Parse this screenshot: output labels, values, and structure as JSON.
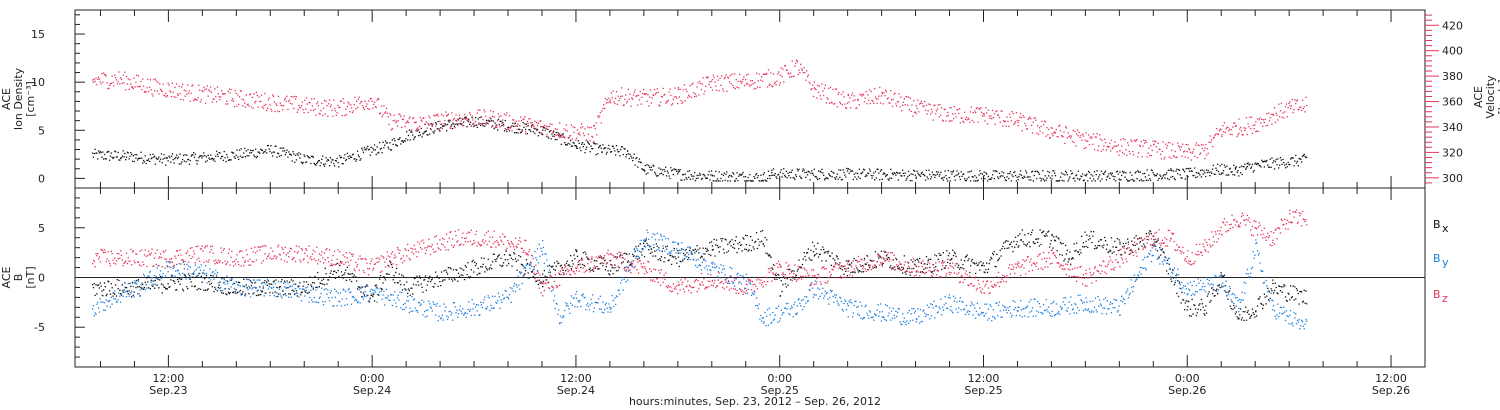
{
  "chart_data": [
    {
      "type": "scatter",
      "panel": "top",
      "ylabel_lines": [
        "ACE",
        "Ion Density",
        "[cm⁻³]"
      ],
      "ylabel_right_lines": [
        "ACE",
        "Velocity",
        "[km/s]"
      ],
      "ylim": [
        -1,
        17.5
      ],
      "yticks": [
        0,
        5,
        10,
        15
      ],
      "ylim_right": [
        292,
        432
      ],
      "yticks_right": [
        300,
        320,
        340,
        360,
        380,
        400,
        420
      ],
      "series": [
        {
          "axis": "left",
          "color": "#111111",
          "points": [
            [
              7.5,
              2.5
            ],
            [
              10,
              2.3
            ],
            [
              12,
              2.0
            ],
            [
              14,
              2.2
            ],
            [
              16,
              2.5
            ],
            [
              18,
              3.0
            ],
            [
              20,
              2.0
            ],
            [
              22,
              1.8
            ],
            [
              24,
              3.0
            ],
            [
              25,
              3.5
            ],
            [
              26,
              4.5
            ],
            [
              28,
              5.5
            ],
            [
              30,
              6.0
            ],
            [
              32,
              5.5
            ],
            [
              34,
              5.0
            ],
            [
              36,
              3.5
            ],
            [
              37.5,
              3.0
            ],
            [
              39,
              2.8
            ],
            [
              40,
              1.0
            ],
            [
              42,
              0.5
            ],
            [
              44,
              0.3
            ],
            [
              46,
              0.2
            ],
            [
              47,
              0.1
            ],
            [
              47.5,
              0.5
            ],
            [
              52,
              0.5
            ],
            [
              56,
              0.4
            ],
            [
              60,
              0.3
            ],
            [
              64,
              0.3
            ],
            [
              68,
              0.3
            ],
            [
              71,
              0.5
            ],
            [
              72,
              0.5
            ],
            [
              74,
              1.0
            ],
            [
              74.8,
              0.8
            ],
            [
              75.5,
              1.2
            ],
            [
              76.5,
              1.5
            ],
            [
              79,
              2.0
            ]
          ]
        },
        {
          "axis": "right",
          "color": "#e6335c",
          "points": [
            [
              7.5,
              377
            ],
            [
              9,
              378
            ],
            [
              11,
              372
            ],
            [
              13,
              368
            ],
            [
              16,
              363
            ],
            [
              18,
              360
            ],
            [
              20,
              357
            ],
            [
              22,
              355
            ],
            [
              24,
              362
            ],
            [
              25,
              345
            ],
            [
              27,
              343
            ],
            [
              29,
              347
            ],
            [
              31,
              347
            ],
            [
              33,
              342
            ],
            [
              35,
              338
            ],
            [
              37,
              335
            ],
            [
              38,
              365
            ],
            [
              40,
              363
            ],
            [
              42,
              365
            ],
            [
              44,
              375
            ],
            [
              46,
              376
            ],
            [
              48,
              380
            ],
            [
              49,
              388
            ],
            [
              50,
              370
            ],
            [
              52,
              360
            ],
            [
              54,
              365
            ],
            [
              56,
              355
            ],
            [
              58,
              350
            ],
            [
              60,
              350
            ],
            [
              62,
              345
            ],
            [
              64,
              337
            ],
            [
              66,
              330
            ],
            [
              68,
              325
            ],
            [
              70,
              323
            ],
            [
              72,
              320
            ],
            [
              73,
              322
            ],
            [
              74,
              338
            ],
            [
              75,
              340
            ],
            [
              76,
              343
            ],
            [
              77,
              350
            ],
            [
              78,
              355
            ],
            [
              79,
              357
            ]
          ]
        }
      ]
    },
    {
      "type": "scatter",
      "panel": "bottom",
      "ylabel_lines": [
        "ACE",
        "B",
        "[nT]"
      ],
      "ylim": [
        -9,
        9
      ],
      "yticks": [
        -5,
        0,
        5
      ],
      "series": [
        {
          "name": "Bx",
          "color": "#111111",
          "points": [
            [
              7.5,
              -1
            ],
            [
              10,
              -1
            ],
            [
              12,
              -0.5
            ],
            [
              14,
              -0.3
            ],
            [
              16,
              -1
            ],
            [
              18,
              -1
            ],
            [
              20,
              -1
            ],
            [
              22,
              1
            ],
            [
              24,
              -2
            ],
            [
              25,
              1
            ],
            [
              26,
              -1
            ],
            [
              28,
              0
            ],
            [
              30,
              1
            ],
            [
              32,
              2
            ],
            [
              34,
              0
            ],
            [
              36,
              2
            ],
            [
              38,
              1
            ],
            [
              40,
              3
            ],
            [
              42,
              2
            ],
            [
              44,
              3
            ],
            [
              46,
              3.5
            ],
            [
              47,
              4
            ],
            [
              48,
              -1
            ],
            [
              50,
              3
            ],
            [
              52,
              1
            ],
            [
              54,
              2
            ],
            [
              56,
              1
            ],
            [
              58,
              2
            ],
            [
              60,
              1
            ],
            [
              62,
              4
            ],
            [
              64,
              4
            ],
            [
              65,
              2
            ],
            [
              66,
              4
            ],
            [
              68,
              3
            ],
            [
              70,
              4
            ],
            [
              72,
              -3
            ],
            [
              73,
              -3
            ],
            [
              74,
              0
            ],
            [
              75,
              -4
            ],
            [
              76,
              -3
            ],
            [
              77,
              -1
            ],
            [
              79,
              -2
            ]
          ]
        },
        {
          "name": "By",
          "color": "#1f7fdf",
          "points": [
            [
              7.5,
              -3
            ],
            [
              10,
              -1
            ],
            [
              12,
              1
            ],
            [
              14,
              0.5
            ],
            [
              16,
              -1
            ],
            [
              18,
              -1
            ],
            [
              20,
              -1.5
            ],
            [
              22,
              -2
            ],
            [
              24,
              -1.5
            ],
            [
              26,
              -2.5
            ],
            [
              28,
              -3.5
            ],
            [
              30,
              -3
            ],
            [
              32,
              -2
            ],
            [
              34,
              3
            ],
            [
              35,
              -4
            ],
            [
              36,
              -2
            ],
            [
              38,
              -3
            ],
            [
              40,
              4
            ],
            [
              42,
              3
            ],
            [
              44,
              1
            ],
            [
              46,
              -0.5
            ],
            [
              47,
              -4
            ],
            [
              49,
              -3
            ],
            [
              50,
              -1
            ],
            [
              52,
              -3
            ],
            [
              54,
              -3.5
            ],
            [
              56,
              -4
            ],
            [
              58,
              -2.5
            ],
            [
              60,
              -3.5
            ],
            [
              62,
              -3
            ],
            [
              64,
              -3
            ],
            [
              66,
              -2.5
            ],
            [
              68,
              -3
            ],
            [
              70,
              3
            ],
            [
              72,
              -1
            ],
            [
              74,
              -0.5
            ],
            [
              75,
              -3
            ],
            [
              76,
              3
            ],
            [
              77,
              -3
            ],
            [
              79,
              -5
            ]
          ]
        },
        {
          "name": "Bz",
          "color": "#e6335c",
          "points": [
            [
              7.5,
              2
            ],
            [
              10,
              2
            ],
            [
              12,
              2
            ],
            [
              14,
              2.5
            ],
            [
              16,
              2
            ],
            [
              18,
              2.5
            ],
            [
              20,
              2.5
            ],
            [
              22,
              2
            ],
            [
              24,
              1
            ],
            [
              25,
              2
            ],
            [
              27,
              3
            ],
            [
              29,
              4
            ],
            [
              31,
              4
            ],
            [
              33,
              3
            ],
            [
              34,
              -1
            ],
            [
              36,
              1
            ],
            [
              38,
              2
            ],
            [
              40,
              1
            ],
            [
              42,
              -1
            ],
            [
              44,
              0
            ],
            [
              46,
              -1
            ],
            [
              48,
              1
            ],
            [
              50,
              0
            ],
            [
              52,
              1
            ],
            [
              54,
              2
            ],
            [
              56,
              1
            ],
            [
              58,
              1
            ],
            [
              60,
              -1
            ],
            [
              62,
              1
            ],
            [
              64,
              2
            ],
            [
              66,
              0
            ],
            [
              68,
              2
            ],
            [
              70,
              4
            ],
            [
              71,
              4
            ],
            [
              72,
              2
            ],
            [
              73,
              3
            ],
            [
              74,
              5
            ],
            [
              75,
              6
            ],
            [
              76,
              5
            ],
            [
              77,
              4
            ],
            [
              78,
              6
            ],
            [
              79,
              6
            ]
          ]
        }
      ]
    }
  ],
  "x_axis": {
    "xlim": [
      6.5,
      86
    ],
    "major_ticks": [
      {
        "hours": 12,
        "time": "12:00",
        "date": "Sep.23"
      },
      {
        "hours": 24,
        "time": "0:00",
        "date": "Sep.24"
      },
      {
        "hours": 36,
        "time": "12:00",
        "date": "Sep.24"
      },
      {
        "hours": 48,
        "time": "0:00",
        "date": "Sep.25"
      },
      {
        "hours": 60,
        "time": "12:00",
        "date": "Sep.25"
      },
      {
        "hours": 72,
        "time": "0:00",
        "date": "Sep.26"
      },
      {
        "hours": 84,
        "time": "12:00",
        "date": "Sep.26"
      }
    ],
    "title": "hours:minutes, Sep. 23, 2012 – Sep. 26, 2012"
  },
  "legend_bottom": [
    {
      "label": "B",
      "subscript": "x",
      "color": "#111111"
    },
    {
      "label": "B",
      "subscript": "y",
      "color": "#1f7fdf"
    },
    {
      "label": "B",
      "subscript": "z",
      "color": "#e6335c"
    }
  ],
  "colors": {
    "black": "#111111",
    "blue": "#1f7fdf",
    "pink": "#e6335c",
    "axis": "#222222"
  }
}
